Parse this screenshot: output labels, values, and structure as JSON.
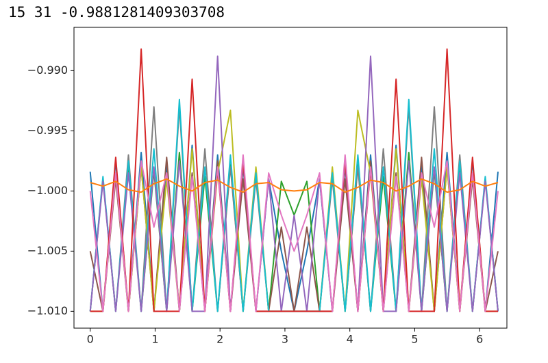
{
  "output_text": "15 31 -0.9881281409303708",
  "chart_data": {
    "type": "line",
    "x": [
      0,
      0.196,
      0.393,
      0.589,
      0.785,
      0.982,
      1.178,
      1.374,
      1.571,
      1.767,
      1.963,
      2.16,
      2.356,
      2.553,
      2.749,
      2.945,
      3.142,
      3.338,
      3.534,
      3.731,
      3.927,
      4.123,
      4.32,
      4.516,
      4.712,
      4.909,
      5.105,
      5.301,
      5.498,
      5.694,
      5.89,
      6.087,
      6.283
    ],
    "series": [
      {
        "color": "#1f77b4",
        "values": [
          -0.9984,
          -1.01,
          -0.9975,
          -1.01,
          -0.9968,
          -1.01,
          -0.9978,
          -1.01,
          -0.9962,
          -1.01,
          -0.997,
          -1.01,
          -0.998,
          -1.01,
          -0.999,
          -1.005,
          -1.01,
          -1.005,
          -0.999,
          -1.01,
          -0.998,
          -1.01,
          -0.997,
          -1.01,
          -0.9962,
          -1.01,
          -0.9978,
          -1.01,
          -0.9968,
          -1.01,
          -0.9975,
          -1.01,
          -0.9984
        ]
      },
      {
        "color": "#2ca02c",
        "values": [
          -1.01,
          -0.999,
          -1.01,
          -0.9978,
          -1.01,
          -0.9983,
          -1.01,
          -0.9968,
          -1.01,
          -0.9988,
          -1.01,
          -0.9978,
          -1.01,
          -0.9985,
          -1.01,
          -0.9992,
          -1.002,
          -0.9992,
          -1.01,
          -0.9985,
          -1.01,
          -0.9978,
          -1.01,
          -0.9988,
          -1.01,
          -0.9968,
          -1.01,
          -0.9983,
          -1.01,
          -0.9978,
          -1.01,
          -0.999,
          -1.01
        ]
      },
      {
        "color": "#8c564b",
        "values": [
          -1.005,
          -1.01,
          -0.999,
          -1.01,
          -0.998,
          -1.01,
          -0.9972,
          -1.01,
          -0.9985,
          -1.01,
          -0.9975,
          -1.01,
          -0.999,
          -1.01,
          -1.01,
          -1.003,
          -1.01,
          -1.003,
          -1.01,
          -1.01,
          -0.999,
          -1.01,
          -0.9975,
          -1.01,
          -0.9985,
          -1.01,
          -0.9972,
          -1.01,
          -0.998,
          -1.01,
          -0.999,
          -1.01,
          -1.005
        ]
      },
      {
        "color": "#7f7f7f",
        "values": [
          -1.01,
          -0.999,
          -1.01,
          -0.997,
          -1.01,
          -0.993,
          -1.01,
          -0.993,
          -1.01,
          -0.9965,
          -1.01,
          -0.998,
          -1.01,
          -0.999,
          -1.01,
          -1.01,
          -1.01,
          -1.01,
          -1.01,
          -0.999,
          -1.01,
          -0.998,
          -1.01,
          -0.9965,
          -1.01,
          -0.993,
          -1.01,
          -0.993,
          -1.01,
          -0.997,
          -1.01,
          -0.999,
          -1.01
        ]
      },
      {
        "color": "#bcbd22",
        "values": [
          -1.01,
          -1.01,
          -0.9985,
          -1.01,
          -0.998,
          -1.01,
          -0.999,
          -1.01,
          -0.9965,
          -1.01,
          -0.9985,
          -0.9933,
          -1.01,
          -0.998,
          -1.01,
          -1.01,
          -1.01,
          -1.01,
          -1.01,
          -0.998,
          -1.01,
          -0.9933,
          -0.9985,
          -1.01,
          -0.9965,
          -1.01,
          -0.999,
          -1.01,
          -0.998,
          -1.01,
          -0.9985,
          -1.01,
          -1.01
        ]
      },
      {
        "color": "#17becf",
        "values": [
          -1.01,
          -0.9988,
          -1.01,
          -0.9975,
          -1.01,
          -0.9965,
          -1.01,
          -0.9924,
          -1.01,
          -0.998,
          -1.01,
          -0.997,
          -1.01,
          -0.9985,
          -1.01,
          -1.01,
          -1.01,
          -1.01,
          -1.01,
          -0.9985,
          -1.01,
          -0.997,
          -1.01,
          -0.998,
          -1.01,
          -0.9924,
          -1.01,
          -0.9965,
          -1.01,
          -0.9975,
          -1.01,
          -0.9988,
          -1.01
        ]
      },
      {
        "color": "#9467bd",
        "values": [
          -1.01,
          -0.9992,
          -1.01,
          -0.9985,
          -1.01,
          -0.998,
          -1.01,
          -0.9975,
          -1.01,
          -1.01,
          -0.9888,
          -1.01,
          -0.9978,
          -1.01,
          -0.999,
          -1.01,
          -1.002,
          -1.01,
          -0.999,
          -1.01,
          -0.9978,
          -1.01,
          -0.9888,
          -1.01,
          -1.01,
          -0.9975,
          -1.01,
          -0.998,
          -1.01,
          -0.9985,
          -1.01,
          -0.9992,
          -1.01
        ]
      },
      {
        "color": "#d62728",
        "values": [
          -1.01,
          -1.01,
          -0.9972,
          -1.01,
          -0.9882,
          -1.01,
          -1.01,
          -1.01,
          -0.9907,
          -1.01,
          -0.9982,
          -1.01,
          -0.9975,
          -1.01,
          -1.01,
          -1.01,
          -1.01,
          -1.01,
          -1.01,
          -1.01,
          -0.9975,
          -1.01,
          -0.9982,
          -1.01,
          -0.9907,
          -1.01,
          -1.01,
          -1.01,
          -0.9882,
          -1.01,
          -0.9972,
          -1.01,
          -1.01
        ]
      },
      {
        "color": "#e377c2",
        "values": [
          -1.0,
          -1.01,
          -0.9985,
          -1.01,
          -0.9975,
          -1.003,
          -0.9985,
          -1.01,
          -0.9988,
          -1.01,
          -0.998,
          -1.01,
          -0.997,
          -1.01,
          -0.9985,
          -1.002,
          -1.005,
          -1.002,
          -0.9985,
          -1.01,
          -0.997,
          -1.01,
          -0.998,
          -1.01,
          -0.9988,
          -1.01,
          -0.9985,
          -1.003,
          -0.9975,
          -1.01,
          -0.9985,
          -1.01,
          -1.0
        ]
      },
      {
        "color": "#ff7f0e",
        "values": [
          -0.9993,
          -0.9996,
          -0.9992,
          -0.9999,
          -1.0001,
          -0.9994,
          -0.999,
          -0.9996,
          -1.0,
          -0.9993,
          -0.9991,
          -0.9997,
          -1.0001,
          -0.9994,
          -0.9993,
          -0.9999,
          -1.0,
          -0.9999,
          -0.9993,
          -0.9994,
          -1.0001,
          -0.9997,
          -0.9991,
          -0.9993,
          -1.0,
          -0.9996,
          -0.999,
          -0.9994,
          -1.0001,
          -0.9999,
          -0.9992,
          -0.9996,
          -0.9993
        ]
      }
    ],
    "xlim": [
      -0.25,
      6.42
    ],
    "ylim": [
      -1.0114,
      -0.9864
    ],
    "xticks": [
      0,
      1,
      2,
      3,
      4,
      5,
      6
    ],
    "yticks": [
      {
        "value": -0.99,
        "label": "−0.990"
      },
      {
        "value": -0.995,
        "label": "−0.995"
      },
      {
        "value": -1.0,
        "label": "−1.000"
      },
      {
        "value": -1.005,
        "label": "−1.005"
      },
      {
        "value": -1.01,
        "label": "−1.010"
      }
    ],
    "grid": false
  }
}
